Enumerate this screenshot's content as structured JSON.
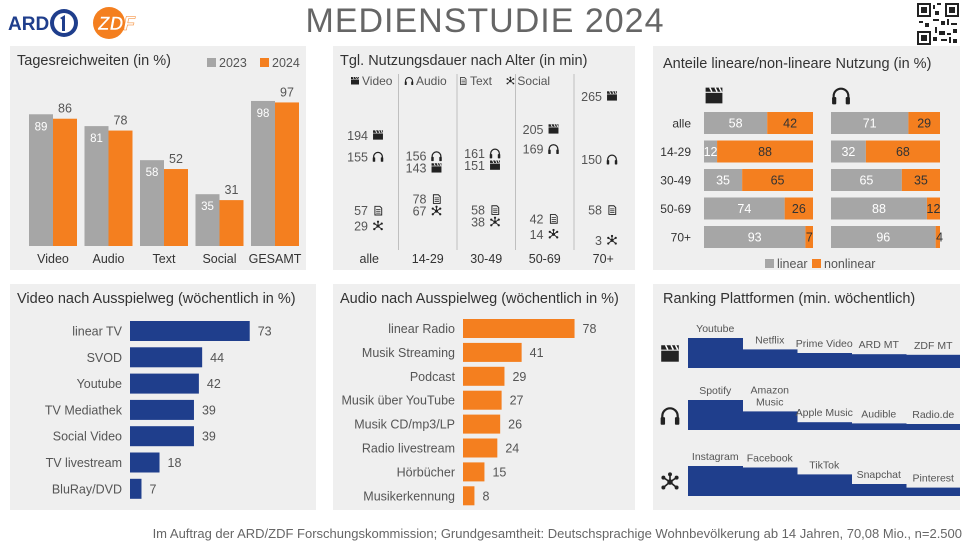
{
  "header": {
    "title": "MEDIENSTUDIE 2024",
    "logo_ard": "ARD",
    "logo_zdf": "ZDF"
  },
  "footer": "Im Auftrag der ARD/ZDF Forschungskommission; Grundgesamtheit: Deutschsprachige Wohnbevölkerung ab 14 Jahren, 70,08 Mio., n=2.500",
  "colors": {
    "gray": "#a6a6a6",
    "orange": "#f47f1f",
    "navy": "#1f3e8c",
    "panel": "#efefef",
    "text": "#555555"
  },
  "chart_data": [
    {
      "id": "tagesreichweiten",
      "type": "bar",
      "title": "Tagesreichweiten (in %)",
      "categories": [
        "Video",
        "Audio",
        "Text",
        "Social",
        "GESAMT"
      ],
      "series": [
        {
          "name": "2023",
          "color": "#a6a6a6",
          "values": [
            89,
            81,
            58,
            35,
            98
          ]
        },
        {
          "name": "2024",
          "color": "#f47f1f",
          "values": [
            86,
            78,
            52,
            31,
            97
          ]
        }
      ],
      "ylim": [
        0,
        100
      ],
      "legend": "top-right"
    },
    {
      "id": "nutzungsdauer",
      "type": "scatter",
      "title": "Tgl. Nutzungsdauer nach Alter (in min)",
      "categories": [
        "alle",
        "14-29",
        "30-49",
        "50-69",
        "70+"
      ],
      "legend_items": [
        {
          "name": "Video",
          "icon": "clapperboard-icon"
        },
        {
          "name": "Audio",
          "icon": "headphones-icon"
        },
        {
          "name": "Text",
          "icon": "document-icon"
        },
        {
          "name": "Social",
          "icon": "network-icon"
        }
      ],
      "series": [
        {
          "name": "Video",
          "icon": "clapperboard-icon",
          "values": [
            194,
            143,
            151,
            205,
            265
          ]
        },
        {
          "name": "Audio",
          "icon": "headphones-icon",
          "values": [
            155,
            156,
            161,
            169,
            150
          ]
        },
        {
          "name": "Text",
          "icon": "document-icon",
          "values": [
            57,
            78,
            58,
            42,
            58
          ]
        },
        {
          "name": "Social",
          "icon": "network-icon",
          "values": [
            29,
            67,
            38,
            14,
            3
          ]
        }
      ],
      "ylim": [
        0,
        280
      ]
    },
    {
      "id": "anteile",
      "type": "bar",
      "title": "Anteile lineare/non-lineare Nutzung (in %)",
      "categories": [
        "alle",
        "14-29",
        "30-49",
        "50-69",
        "70+"
      ],
      "groups": [
        {
          "icon": "clapperboard-icon",
          "linear": [
            58,
            12,
            35,
            74,
            93
          ],
          "nonlinear": [
            42,
            88,
            65,
            26,
            7
          ]
        },
        {
          "icon": "headphones-icon",
          "linear": [
            71,
            32,
            65,
            88,
            96
          ],
          "nonlinear": [
            29,
            68,
            35,
            12,
            4
          ]
        }
      ],
      "legend": [
        {
          "name": "linear",
          "color": "#a6a6a6"
        },
        {
          "name": "nonlinear",
          "color": "#f47f1f"
        }
      ],
      "stacked": true,
      "orientation": "horizontal"
    },
    {
      "id": "video_ausspielweg",
      "type": "bar",
      "orientation": "horizontal",
      "title": "Video nach Ausspielweg  (wöchentlich in %)",
      "categories": [
        "linear TV",
        "SVOD",
        "Youtube",
        "TV Mediathek",
        "Social Video",
        "TV livestream",
        "BluRay/DVD"
      ],
      "values": [
        73,
        44,
        42,
        39,
        39,
        18,
        7
      ],
      "color": "#1f3e8c"
    },
    {
      "id": "audio_ausspielweg",
      "type": "bar",
      "orientation": "horizontal",
      "title": "Audio nach Ausspielweg  (wöchentlich in %)",
      "categories": [
        "linear Radio",
        "Musik Streaming",
        "Podcast",
        "Musik über YouTube",
        "Musik CD/mp3/LP",
        "Radio livestream",
        "Hörbücher",
        "Musikerkennung"
      ],
      "values": [
        78,
        41,
        29,
        27,
        26,
        24,
        15,
        8
      ],
      "color": "#f47f1f"
    },
    {
      "id": "ranking",
      "type": "bar",
      "title": "Ranking Plattformen (min. wöchentlich)",
      "rows": [
        {
          "icon": "clapperboard-icon",
          "categories": [
            "Youtube",
            "Netflix",
            "Prime Video",
            "ARD MT",
            "ZDF MT"
          ],
          "relative": [
            1.0,
            0.62,
            0.5,
            0.46,
            0.44
          ]
        },
        {
          "icon": "headphones-icon",
          "categories": [
            "Spotify",
            "Amazon Music",
            "Apple Music",
            "Audible",
            "Radio.de"
          ],
          "relative": [
            1.0,
            0.62,
            0.26,
            0.22,
            0.2
          ]
        },
        {
          "icon": "network-icon",
          "categories": [
            "Instagram",
            "Facebook",
            "TikTok",
            "Snapchat",
            "Pinterest"
          ],
          "relative": [
            1.0,
            0.95,
            0.72,
            0.4,
            0.28
          ]
        }
      ],
      "color": "#1f3e8c"
    }
  ]
}
